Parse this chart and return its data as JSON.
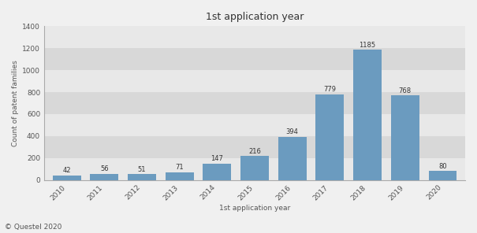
{
  "title": "1st application year",
  "xlabel": "1st application year",
  "ylabel": "Count of patent families",
  "years": [
    2010,
    2011,
    2012,
    2013,
    2014,
    2015,
    2016,
    2017,
    2018,
    2019,
    2020
  ],
  "values": [
    42,
    56,
    51,
    71,
    147,
    216,
    394,
    779,
    1185,
    768,
    80
  ],
  "bar_color": "#6b9bbf",
  "background_color": "#f0f0f0",
  "plot_bg_light": "#e8e8e8",
  "plot_bg_dark": "#d8d8d8",
  "ylim": [
    0,
    1400
  ],
  "yticks": [
    0,
    200,
    400,
    600,
    800,
    1000,
    1200,
    1400
  ],
  "footer_text": "© Questel 2020",
  "title_fontsize": 9,
  "label_fontsize": 6.5,
  "tick_fontsize": 6.5,
  "footer_fontsize": 6.5,
  "bar_label_fontsize": 6.0,
  "bar_width": 0.75
}
